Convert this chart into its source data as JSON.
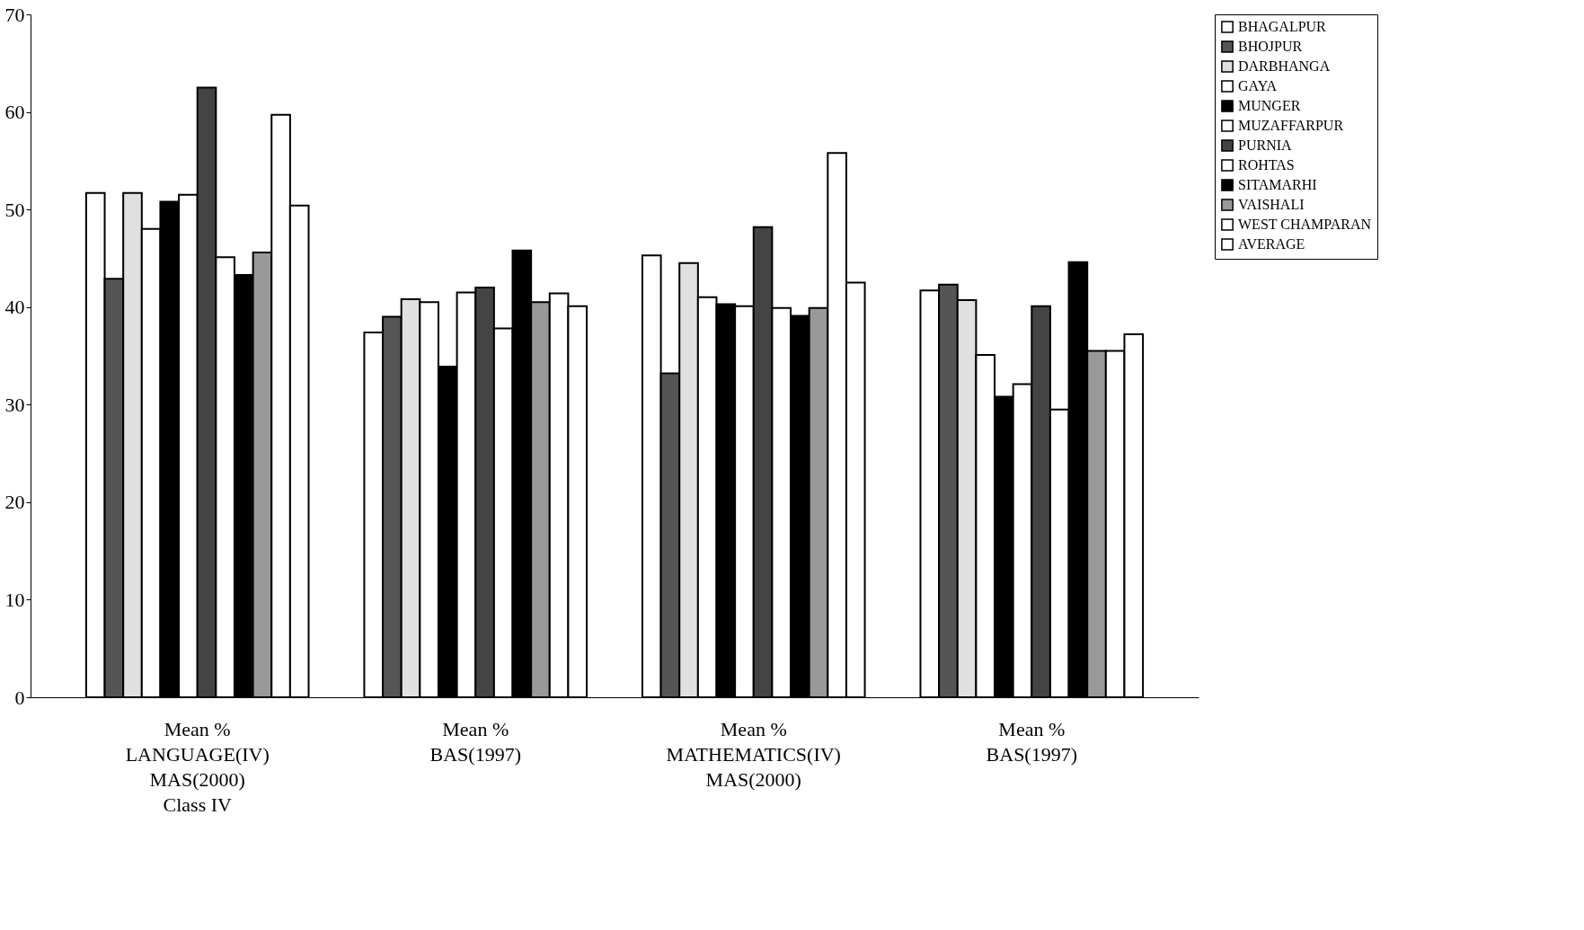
{
  "chart_data": {
    "type": "bar",
    "categories": [
      "Mean %\nLANGUAGE(IV)\nMAS(2000)\nClass IV",
      "Mean %\nBAS(1997)",
      "Mean %\nMATHEMATICS(IV)\nMAS(2000)",
      "Mean %\nBAS(1997)"
    ],
    "series": [
      {
        "name": "BHAGALPUR",
        "color": "#ffffff",
        "values": [
          51.7,
          37.4,
          45.3,
          41.7
        ]
      },
      {
        "name": "BHOJPUR",
        "color": "#555555",
        "values": [
          42.9,
          39.0,
          33.2,
          42.3
        ]
      },
      {
        "name": "DARBHANGA",
        "color": "#e0e0e0",
        "values": [
          51.7,
          40.8,
          44.5,
          40.7
        ]
      },
      {
        "name": "GAYA",
        "color": "#ffffff",
        "values": [
          48.0,
          40.5,
          41.0,
          35.1
        ]
      },
      {
        "name": "MUNGER",
        "color": "#000000",
        "values": [
          50.8,
          33.9,
          40.3,
          30.8
        ]
      },
      {
        "name": "MUZAFFARPUR",
        "color": "#ffffff",
        "values": [
          51.5,
          41.5,
          40.1,
          32.1
        ]
      },
      {
        "name": "PURNIA",
        "color": "#444444",
        "values": [
          62.5,
          42.0,
          48.2,
          40.1
        ]
      },
      {
        "name": "ROHTAS",
        "color": "#ffffff",
        "values": [
          45.1,
          37.8,
          39.9,
          29.5
        ]
      },
      {
        "name": "SITAMARHI",
        "color": "#000000",
        "values": [
          43.3,
          45.8,
          39.1,
          44.6
        ]
      },
      {
        "name": "VAISHALI",
        "color": "#999999",
        "values": [
          45.6,
          40.5,
          39.9,
          35.5
        ]
      },
      {
        "name": "WEST CHAMPARAN",
        "color": "#ffffff",
        "values": [
          59.7,
          41.4,
          55.8,
          35.5
        ]
      },
      {
        "name": "AVERAGE",
        "color": "#ffffff",
        "values": [
          50.4,
          40.1,
          42.5,
          37.2
        ]
      }
    ],
    "ylim": [
      0,
      70
    ],
    "yticks": [
      0,
      10,
      20,
      30,
      40,
      50,
      60,
      70
    ],
    "grid": false,
    "legend": "right"
  }
}
